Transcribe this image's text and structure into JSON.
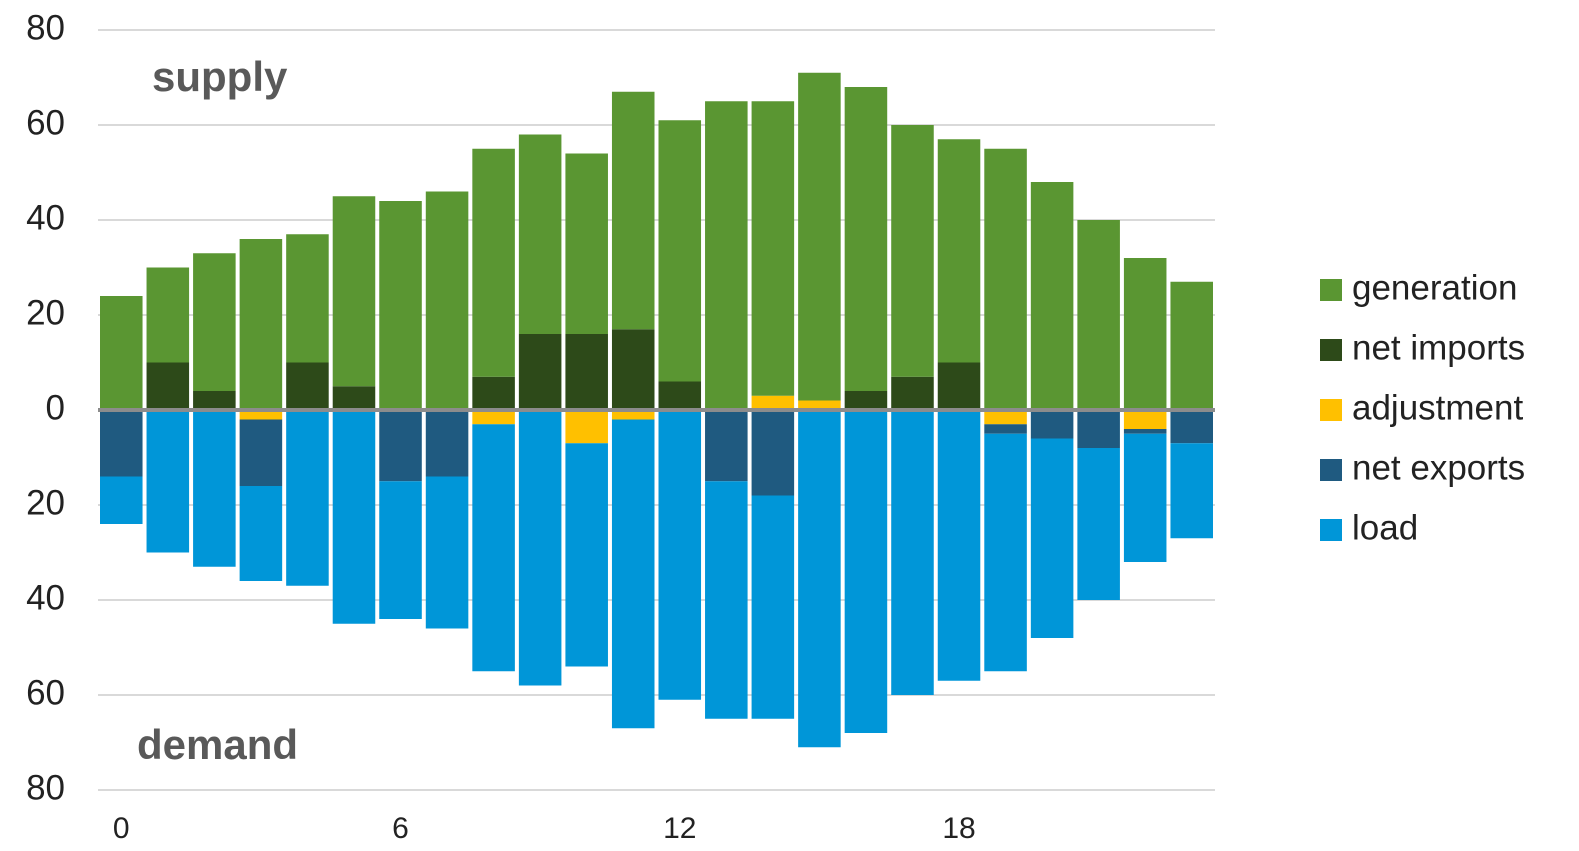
{
  "chart_data": {
    "type": "bar",
    "stacked": true,
    "annotations": [
      {
        "text": "supply"
      },
      {
        "text": "demand"
      }
    ],
    "categories": [
      0,
      null,
      null,
      null,
      null,
      null,
      6,
      null,
      null,
      null,
      null,
      null,
      12,
      null,
      null,
      null,
      null,
      null,
      18,
      null,
      null,
      null,
      null,
      null
    ],
    "series": [
      {
        "name": "generation",
        "color": "#5a9632",
        "values": [
          24,
          20,
          29,
          36,
          27,
          40,
          44,
          46,
          48,
          42,
          38,
          50,
          55,
          65,
          62,
          69,
          64,
          53,
          47,
          55,
          48,
          40,
          32,
          27
        ]
      },
      {
        "name": "net imports",
        "color": "#2d4a19",
        "values": [
          0,
          10,
          4,
          0,
          10,
          5,
          0,
          0,
          7,
          16,
          16,
          17,
          6,
          0,
          0,
          0,
          4,
          7,
          10,
          0,
          0,
          0,
          0,
          0
        ]
      },
      {
        "name": "adjustment",
        "color": "#ffc000",
        "values": [
          0,
          0,
          0,
          -2,
          0,
          0,
          0,
          0,
          -3,
          0,
          -7,
          -2,
          0,
          0,
          3,
          2,
          0,
          0,
          0,
          -3,
          0,
          0,
          -4,
          0
        ]
      },
      {
        "name": "net exports",
        "color": "#1f5a80",
        "values": [
          -14,
          0,
          0,
          -14,
          0,
          0,
          -15,
          -14,
          0,
          0,
          0,
          0,
          0,
          -15,
          -18,
          0,
          0,
          0,
          0,
          -2,
          -6,
          -8,
          -1,
          -7
        ]
      },
      {
        "name": "load",
        "color": "#0096d8",
        "values": [
          -10,
          -30,
          -33,
          -20,
          -37,
          -45,
          -29,
          -32,
          -52,
          -58,
          -47,
          -65,
          -61,
          -50,
          -47,
          -71,
          -68,
          -60,
          -57,
          -50,
          -42,
          -32,
          -27,
          -20
        ]
      }
    ],
    "ylim": [
      -80,
      80
    ],
    "yticks": [
      80,
      60,
      40,
      20,
      0,
      {
        "value": -20,
        "label": "20"
      },
      {
        "value": -40,
        "label": "40"
      },
      {
        "value": -60,
        "label": "60"
      },
      {
        "value": -80,
        "label": "80"
      }
    ],
    "grid": true,
    "legend": "right"
  }
}
